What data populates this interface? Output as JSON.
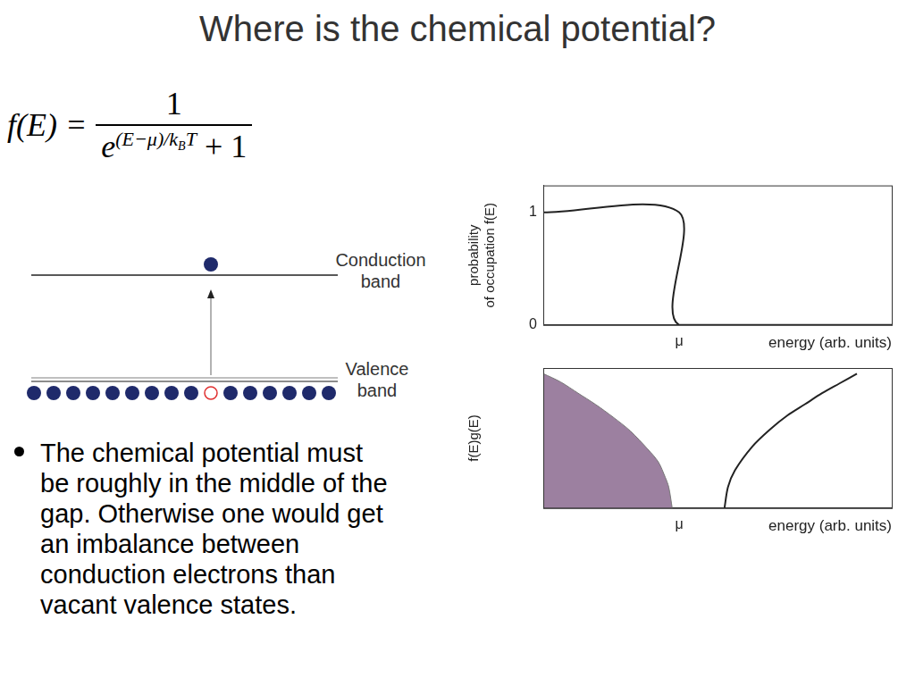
{
  "slide": {
    "title": "Where is the chemical potential?",
    "formula": {
      "lhs": "f(E) =",
      "numerator": "1",
      "denominator_base": "e",
      "exponent": "(E−μ)/k",
      "exponent_subscript": "B",
      "exponent_tail": "T",
      "denominator_tail": "+ 1"
    },
    "diagram": {
      "upper_label": [
        "Conduction",
        "band"
      ],
      "lower_label": [
        "Valence",
        "band"
      ]
    },
    "bullet": [
      "The chemical potential must",
      "be roughly in the middle of the",
      "gap. Otherwise one would get",
      "an imbalance between",
      "conduction electrons than",
      "vacant valence states."
    ]
  },
  "chart_data": [
    {
      "type": "line",
      "y_label": [
        "probability",
        "of occupation f(E)"
      ],
      "x_label": "energy (arb. units)",
      "xlim": [
        0,
        10
      ],
      "xticks": [
        {
          "value": 3.9,
          "label": "μ"
        }
      ],
      "ylim": [
        0,
        1.24
      ],
      "yticks": [
        0,
        1
      ],
      "grid": false,
      "series": [
        {
          "type": "line",
          "color": "#222222",
          "x": [
            0,
            3.9,
            3.9,
            10
          ],
          "values": [
            1,
            1,
            0,
            0
          ]
        }
      ]
    },
    {
      "type": "line",
      "y_label": "f(E)g(E)",
      "x_label": "energy (arb. units)",
      "xlim": [
        0,
        10
      ],
      "xticks": [
        {
          "value": 3.9,
          "label": "μ"
        }
      ],
      "ylim": [
        0,
        1
      ],
      "grid": false,
      "tick_labels": "x",
      "series": [
        {
          "type": "area",
          "color": "#9c80a0",
          "x": [
            0,
            0.5,
            1,
            1.5,
            2,
            2.5,
            3,
            3.3,
            3.5,
            3.6,
            3.7
          ],
          "values": [
            0.96,
            0.9,
            0.82,
            0.74,
            0.65,
            0.55,
            0.42,
            0.33,
            0.22,
            0.15,
            0
          ]
        },
        {
          "type": "line",
          "color": "#222222",
          "x": [
            5.2,
            5.3,
            5.5,
            6,
            6.5,
            7,
            7.5,
            8,
            8.5,
            9
          ],
          "values": [
            0,
            0.15,
            0.27,
            0.44,
            0.56,
            0.66,
            0.74,
            0.82,
            0.89,
            0.96
          ]
        }
      ]
    }
  ]
}
